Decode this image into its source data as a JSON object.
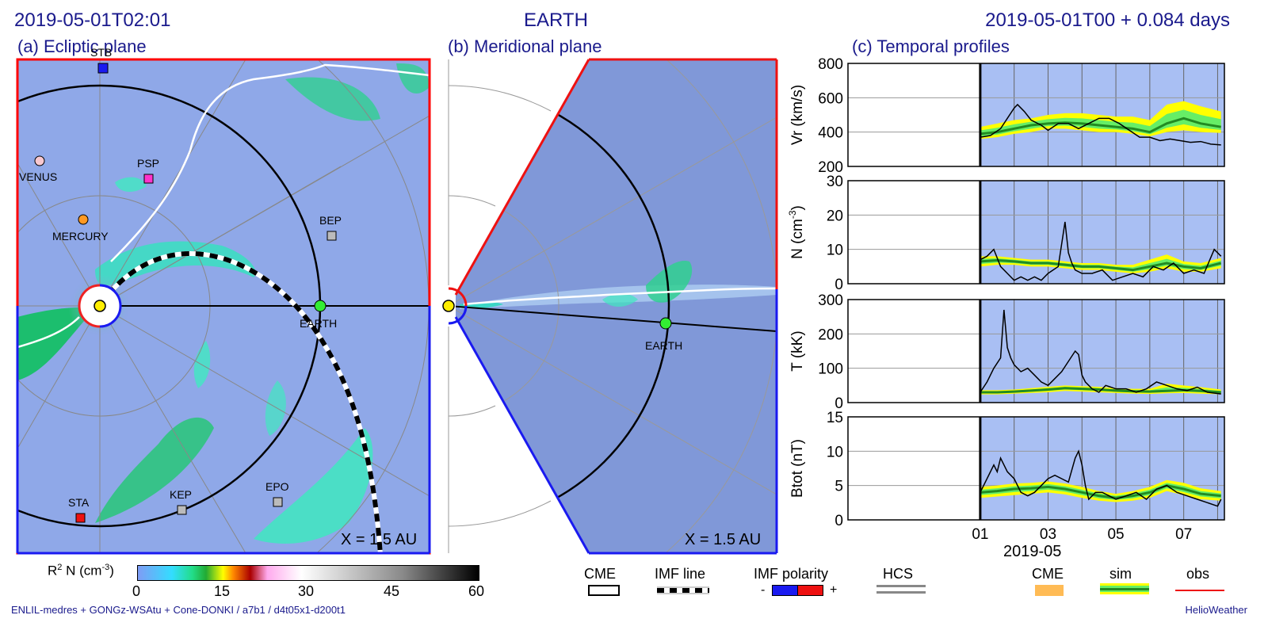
{
  "header": {
    "left_time": "2019-05-01T02:01",
    "center_title": "EARTH",
    "right_time": "2019-05-01T00 +  0.084 days"
  },
  "panels": {
    "a": {
      "title": "(a) Ecliptic plane",
      "scale": "X = 1.5 AU"
    },
    "b": {
      "title": "(b) Meridional plane",
      "scale": "X = 1.5 AU"
    },
    "c": {
      "title": "(c) Temporal profiles"
    }
  },
  "bodies": {
    "stb": "STB",
    "venus": "VENUS",
    "psp": "PSP",
    "mercury": "MERCURY",
    "bep": "BEP",
    "earth": "EARTH",
    "sta": "STA",
    "kep": "KEP",
    "epo": "EPO"
  },
  "colorbar": {
    "label_main": "R",
    "label_sup": "2",
    "label_mid": " N (cm",
    "label_sup2": "-3",
    "label_end": ")",
    "ticks": [
      "0",
      "15",
      "30",
      "45",
      "60"
    ],
    "min": 0,
    "max": 60
  },
  "legend": {
    "cme": "CME",
    "imf_line": "IMF line",
    "imf_polarity": "IMF polarity",
    "minus": "-",
    "plus": "+",
    "hcs": "HCS",
    "cme2": "CME",
    "sim": "sim",
    "obs": "obs"
  },
  "footer": {
    "left": "ENLIL-medres + GONGz-WSAtu + Cone-DONKI / a7b1 / d4t05x1-d200t1",
    "right": "HelioWeather"
  },
  "colors": {
    "navy": "#1a1a8c",
    "field_bg": "#8fa8e8",
    "plot_bg": "#a9bff3",
    "sim_band": "#ffff00",
    "sim_inner": "#66ee66",
    "sim_line": "#228b22",
    "obs_line": "#000000",
    "cme": "#ffbb55"
  },
  "chart_data": {
    "type": "line",
    "x_tick_labels": [
      "01",
      "03",
      "05",
      "07"
    ],
    "x_tick_days": [
      1,
      3,
      5,
      7
    ],
    "date_label": "2019-05",
    "xlim": [
      -2.9,
      8.2
    ],
    "data_start": 1,
    "panels": [
      {
        "ylabel": "Vr (km/s)",
        "ylim": [
          200,
          800
        ],
        "yticks": [
          200,
          400,
          600,
          800
        ],
        "obs": {
          "x": [
            1.0,
            1.3,
            1.6,
            1.8,
            2.0,
            2.1,
            2.3,
            2.5,
            2.8,
            3.0,
            3.3,
            3.6,
            3.9,
            4.2,
            4.5,
            4.8,
            5.1,
            5.4,
            5.7,
            6.0,
            6.3,
            6.6,
            6.9,
            7.2,
            7.5,
            7.8,
            8.1
          ],
          "y": [
            370,
            380,
            420,
            480,
            540,
            560,
            520,
            470,
            440,
            410,
            450,
            450,
            420,
            450,
            480,
            480,
            450,
            410,
            370,
            370,
            350,
            360,
            350,
            340,
            345,
            330,
            325
          ]
        },
        "sim": {
          "x": [
            1.0,
            1.5,
            2.0,
            2.5,
            3.0,
            3.5,
            4.0,
            4.5,
            5.0,
            5.5,
            6.0,
            6.5,
            7.0,
            7.5,
            8.1
          ],
          "y": [
            390,
            400,
            420,
            440,
            450,
            455,
            450,
            440,
            430,
            420,
            400,
            450,
            480,
            450,
            430
          ],
          "lo": [
            360,
            370,
            390,
            400,
            420,
            420,
            410,
            400,
            400,
            390,
            375,
            400,
            410,
            400,
            395
          ],
          "hi": [
            430,
            450,
            470,
            480,
            500,
            510,
            510,
            500,
            490,
            490,
            470,
            560,
            580,
            550,
            520
          ]
        }
      },
      {
        "ylabel": "N (cm-3)",
        "ylabel_main": "N (cm",
        "ylabel_sup": "-3",
        "ylabel_end": ")",
        "ylim": [
          0,
          30
        ],
        "yticks": [
          0,
          10,
          20,
          30
        ],
        "obs": {
          "x": [
            1.0,
            1.2,
            1.4,
            1.6,
            1.8,
            2.0,
            2.2,
            2.4,
            2.6,
            2.8,
            3.0,
            3.3,
            3.5,
            3.6,
            3.7,
            3.8,
            4.0,
            4.3,
            4.6,
            4.9,
            5.2,
            5.5,
            5.8,
            6.1,
            6.4,
            6.7,
            7.0,
            7.3,
            7.6,
            7.9,
            8.1
          ],
          "y": [
            7,
            8,
            10,
            5,
            3,
            1,
            2,
            1,
            2,
            1,
            3,
            5,
            18,
            9,
            6,
            4,
            3,
            3,
            4,
            1,
            2,
            3,
            2,
            5,
            4,
            6,
            3,
            4,
            3,
            10,
            8
          ]
        },
        "sim": {
          "x": [
            1.0,
            1.5,
            2.0,
            2.5,
            3.0,
            3.5,
            4.0,
            4.5,
            5.0,
            5.5,
            6.0,
            6.5,
            7.0,
            7.5,
            8.1
          ],
          "y": [
            6.5,
            6.8,
            6.5,
            6.0,
            6.0,
            5.5,
            5.0,
            5.0,
            4.5,
            4.0,
            5.0,
            6.0,
            5.0,
            4.5,
            6.0
          ],
          "lo": [
            5.0,
            5.5,
            5.5,
            5.0,
            5.0,
            4.5,
            4.0,
            4.0,
            3.5,
            3.0,
            3.5,
            4.5,
            3.5,
            3.5,
            4.5
          ],
          "hi": [
            8.0,
            8.0,
            7.5,
            7.0,
            7.0,
            6.5,
            6.0,
            6.0,
            5.5,
            5.5,
            7.0,
            8.5,
            6.5,
            6.0,
            7.5
          ]
        }
      },
      {
        "ylabel": "T (kK)",
        "ylim": [
          0,
          300
        ],
        "yticks": [
          0,
          100,
          200,
          300
        ],
        "obs": {
          "x": [
            1.0,
            1.2,
            1.4,
            1.6,
            1.7,
            1.8,
            1.9,
            2.0,
            2.2,
            2.4,
            2.6,
            2.8,
            3.0,
            3.2,
            3.4,
            3.6,
            3.8,
            3.9,
            4.0,
            4.1,
            4.3,
            4.5,
            4.7,
            5.0,
            5.3,
            5.6,
            5.9,
            6.2,
            6.5,
            6.8,
            7.1,
            7.4,
            7.7,
            8.1
          ],
          "y": [
            30,
            60,
            100,
            130,
            270,
            160,
            130,
            110,
            90,
            100,
            80,
            60,
            50,
            70,
            90,
            120,
            150,
            140,
            80,
            60,
            40,
            30,
            50,
            40,
            40,
            30,
            40,
            60,
            50,
            40,
            35,
            45,
            30,
            25
          ]
        },
        "sim": {
          "x": [
            1.0,
            1.5,
            2.0,
            2.5,
            3.0,
            3.5,
            4.0,
            4.5,
            5.0,
            5.5,
            6.0,
            6.5,
            7.0,
            7.5,
            8.1
          ],
          "y": [
            30,
            30,
            32,
            35,
            38,
            42,
            40,
            38,
            35,
            33,
            32,
            34,
            36,
            34,
            30
          ],
          "lo": [
            24,
            24,
            26,
            28,
            30,
            34,
            32,
            30,
            28,
            26,
            25,
            27,
            28,
            26,
            24
          ],
          "hi": [
            36,
            36,
            38,
            42,
            46,
            50,
            48,
            46,
            42,
            40,
            40,
            55,
            50,
            45,
            38
          ]
        }
      },
      {
        "ylabel": "Btot (nT)",
        "ylim": [
          0,
          15
        ],
        "yticks": [
          0,
          5,
          10,
          15
        ],
        "obs": {
          "x": [
            1.0,
            1.2,
            1.4,
            1.5,
            1.6,
            1.8,
            2.0,
            2.2,
            2.4,
            2.6,
            2.8,
            3.0,
            3.2,
            3.4,
            3.6,
            3.8,
            3.9,
            4.0,
            4.1,
            4.2,
            4.4,
            4.6,
            4.8,
            5.0,
            5.3,
            5.6,
            5.9,
            6.2,
            6.5,
            6.8,
            7.1,
            7.4,
            7.7,
            8.0,
            8.1
          ],
          "y": [
            4,
            6,
            8,
            7,
            9,
            7,
            6,
            4,
            3.5,
            4,
            5,
            6,
            6.5,
            6,
            5.5,
            9,
            10,
            8,
            5,
            3,
            4,
            4,
            3.5,
            3,
            3.5,
            4,
            3,
            4.5,
            5,
            4,
            3.5,
            3,
            2.5,
            2,
            3
          ]
        },
        "sim": {
          "x": [
            1.0,
            1.5,
            2.0,
            2.5,
            3.0,
            3.5,
            4.0,
            4.5,
            5.0,
            5.5,
            6.0,
            6.5,
            7.0,
            7.5,
            8.1
          ],
          "y": [
            4,
            4.2,
            4.5,
            4.6,
            4.8,
            4.5,
            4.0,
            3.5,
            3.2,
            3.5,
            4.0,
            5.0,
            4.5,
            3.8,
            3.5
          ],
          "lo": [
            3.2,
            3.4,
            3.6,
            3.8,
            4.0,
            3.7,
            3.2,
            2.8,
            2.6,
            2.8,
            3.2,
            4.2,
            3.6,
            3.0,
            2.8
          ],
          "hi": [
            4.8,
            5.0,
            5.3,
            5.4,
            5.6,
            5.3,
            4.8,
            4.2,
            3.8,
            4.2,
            4.8,
            5.8,
            5.4,
            4.6,
            4.2
          ]
        }
      }
    ]
  }
}
